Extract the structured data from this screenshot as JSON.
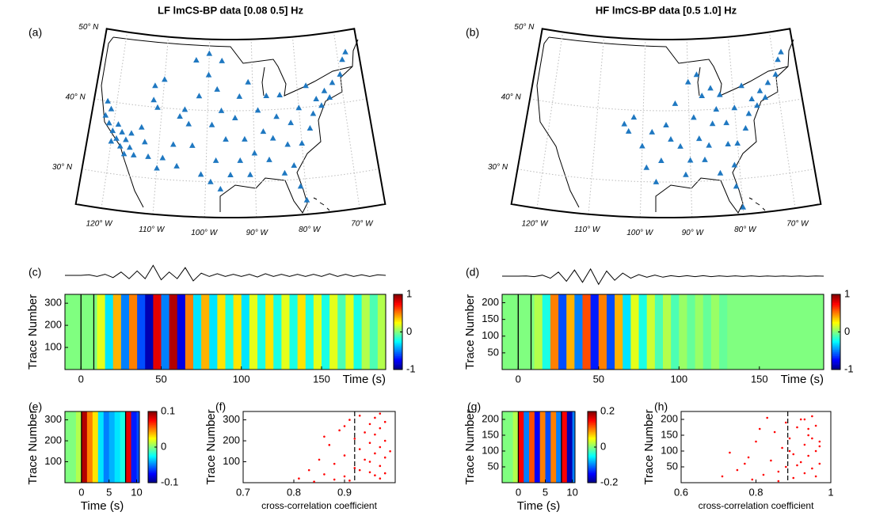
{
  "chart_data": [
    {
      "type": "map",
      "panel": "(a)",
      "title": "LF lmCS-BP data [0.08 0.5] Hz",
      "lonlim": [
        -125,
        -65
      ],
      "latlim": [
        25,
        50
      ],
      "grid": true,
      "color": "#1f78c1",
      "lat_ticks": [
        {
          "value": 50,
          "label": "50° N"
        },
        {
          "value": 40,
          "label": "40° N"
        },
        {
          "value": 30,
          "label": "30° N"
        }
      ],
      "lon_ticks": [
        {
          "value": -120,
          "label": "120° W"
        },
        {
          "value": -110,
          "label": "110° W"
        },
        {
          "value": -100,
          "label": "100° W"
        },
        {
          "value": -90,
          "label": "90° W"
        },
        {
          "value": -80,
          "label": "80° W"
        },
        {
          "value": -70,
          "label": "70° W"
        }
      ],
      "stations": {
        "lon": [
          -122,
          -121,
          -120,
          -119,
          -118,
          -117,
          -121,
          -119,
          -117,
          -116,
          -118,
          -115,
          -122,
          -120,
          -116,
          -112,
          -111,
          -112,
          -110,
          -106,
          -105,
          -104,
          -107,
          -109,
          -112,
          -110,
          -106,
          -103,
          -114,
          -113,
          -100,
          -98,
          -97,
          -99,
          -96,
          -98,
          -99,
          -101,
          -97,
          -95,
          -93,
          -92,
          -94,
          -93,
          -91,
          -89,
          -88,
          -90,
          -91,
          -87,
          -86,
          -85,
          -84,
          -83,
          -82,
          -81,
          -80,
          -84,
          -80,
          -78,
          -77,
          -76,
          -74,
          -72,
          -70,
          -69,
          -68,
          -73,
          -75,
          -78,
          -80,
          -82,
          -87,
          -102,
          -103,
          -100,
          -97
        ],
        "lat": [
          38,
          37,
          36,
          35,
          34,
          33,
          39,
          37,
          35,
          34,
          36,
          33,
          40,
          34.5,
          36,
          41,
          40,
          43,
          44,
          39,
          40,
          38,
          35,
          33,
          33,
          31.5,
          32,
          35,
          37,
          35,
          45,
          43,
          40,
          38,
          36,
          33,
          30,
          31,
          29,
          31,
          33,
          36,
          39,
          42,
          44,
          40,
          37,
          34,
          31,
          33,
          36,
          39,
          42,
          35,
          32,
          29,
          27,
          31,
          35,
          37,
          39,
          41,
          42,
          43,
          44,
          46,
          47,
          41,
          40,
          43,
          40,
          38,
          42,
          42,
          47,
          48,
          47
        ]
      }
    },
    {
      "type": "map",
      "panel": "(b)",
      "title": "HF lmCS-BP data [0.5 1.0] Hz",
      "lonlim": [
        -125,
        -65
      ],
      "latlim": [
        25,
        50
      ],
      "grid": true,
      "color": "#1f78c1",
      "lat_ticks": [
        {
          "value": 50,
          "label": "50° N"
        },
        {
          "value": 40,
          "label": "40° N"
        },
        {
          "value": 30,
          "label": "30° N"
        }
      ],
      "lon_ticks": [
        {
          "value": -120,
          "label": "120° W"
        },
        {
          "value": -110,
          "label": "110° W"
        },
        {
          "value": -100,
          "label": "100° W"
        },
        {
          "value": -90,
          "label": "90° W"
        },
        {
          "value": -80,
          "label": "80° W"
        },
        {
          "value": -70,
          "label": "70° W"
        }
      ],
      "stations": {
        "lon": [
          -104,
          -103,
          -102,
          -100,
          -99,
          -97,
          -96,
          -94,
          -92,
          -90,
          -91,
          -88,
          -87,
          -86,
          -85,
          -84,
          -83,
          -85,
          -82,
          -81,
          -81,
          -80,
          -84,
          -80,
          -78,
          -77,
          -76,
          -74,
          -72,
          -70,
          -69,
          -68,
          -73,
          -75,
          -78,
          -80,
          -82,
          -87,
          -89,
          -93,
          -95,
          -98,
          -90,
          -88
        ],
        "lat": [
          38,
          37,
          39,
          35,
          32,
          30,
          33,
          36,
          35,
          33,
          31,
          36,
          33,
          35,
          38,
          40,
          42,
          43,
          35,
          32,
          29,
          26,
          31,
          35,
          37,
          39,
          41,
          42,
          43,
          44,
          46,
          47,
          41,
          40,
          43,
          40,
          38,
          42,
          39,
          41,
          38,
          37,
          44,
          45
        ]
      }
    },
    {
      "type": "heatmap",
      "panel": "(c)",
      "x_label": "Time (s)",
      "y_label": "Trace Number",
      "xlim": [
        -10,
        190
      ],
      "xticks": [
        0,
        50,
        100,
        150
      ],
      "ylim": [
        0,
        340
      ],
      "yticks": [
        100,
        200,
        300
      ],
      "clim": [
        -1,
        1
      ],
      "cticks": [
        -1,
        0,
        1
      ],
      "markers": [
        0,
        8
      ],
      "x_edges": [
        -10,
        -5,
        0,
        5,
        10,
        15,
        20,
        25,
        30,
        35,
        40,
        45,
        50,
        55,
        60,
        65,
        70,
        75,
        80,
        85,
        90,
        95,
        100,
        105,
        110,
        115,
        120,
        125,
        130,
        135,
        140,
        145,
        150,
        155,
        160,
        165,
        170,
        175,
        180,
        185,
        190
      ],
      "values": [
        0,
        0,
        0,
        0,
        0.2,
        -0.3,
        0.4,
        -0.5,
        0.5,
        -0.6,
        -0.9,
        0.8,
        -0.5,
        0.9,
        -0.8,
        0.5,
        -0.3,
        0.4,
        -0.3,
        0.3,
        -0.2,
        0.3,
        -0.3,
        0.2,
        -0.2,
        0.3,
        -0.2,
        0.2,
        -0.2,
        0.3,
        -0.2,
        0.2,
        -0.2,
        0.2,
        -0.1,
        0.2,
        -0.2,
        0.1,
        -0.1,
        0.1
      ],
      "trace": [
        0,
        0,
        0,
        0.05,
        -0.1,
        0.1,
        -0.2,
        0.3,
        -0.3,
        0.4,
        -0.3,
        0.9,
        -0.4,
        0.3,
        -0.3,
        0.7,
        -0.5,
        0.2,
        -0.1,
        0.15,
        -0.1,
        0.1,
        -0.1,
        0.1,
        -0.15,
        0.15,
        -0.1,
        0.1,
        -0.1,
        0.1,
        -0.1,
        0.1,
        -0.1,
        0.15,
        -0.1,
        0.1,
        -0.1,
        0.05,
        -0.1,
        0.05,
        0
      ]
    },
    {
      "type": "heatmap",
      "panel": "(d)",
      "x_label": "Time (s)",
      "y_label": "Trace Number",
      "xlim": [
        -10,
        190
      ],
      "xticks": [
        0,
        50,
        100,
        150
      ],
      "ylim": [
        0,
        225
      ],
      "yticks": [
        50,
        100,
        150,
        200
      ],
      "clim": [
        -1,
        1
      ],
      "cticks": [
        -1,
        0,
        1
      ],
      "markers": [
        0,
        8
      ],
      "x_edges": [
        -10,
        -5,
        0,
        5,
        10,
        15,
        20,
        25,
        30,
        35,
        40,
        45,
        50,
        55,
        60,
        65,
        70,
        75,
        80,
        85,
        90,
        95,
        100,
        105,
        110,
        115,
        120,
        125,
        130,
        135,
        140,
        145,
        150,
        155,
        160,
        165,
        170,
        175,
        180,
        185,
        190
      ],
      "values": [
        0,
        0,
        0,
        0,
        0.1,
        -0.2,
        0.5,
        -0.6,
        0.4,
        -0.5,
        0.6,
        -0.7,
        0.5,
        -0.6,
        0.4,
        -0.3,
        0.2,
        -0.2,
        0.15,
        -0.1,
        0.1,
        -0.1,
        0.05,
        -0.05,
        0.05,
        -0.05,
        0.05,
        -0.05,
        0,
        0,
        0,
        0,
        0,
        0,
        0,
        0,
        0,
        0,
        0,
        0
      ],
      "trace": [
        0,
        0,
        0,
        0.02,
        -0.05,
        0.1,
        -0.2,
        0.4,
        -0.5,
        0.6,
        -0.6,
        0.7,
        -0.8,
        0.5,
        -0.4,
        0.3,
        -0.2,
        0.15,
        -0.1,
        0.1,
        -0.1,
        0.05,
        -0.05,
        0.05,
        -0.05,
        0.05,
        -0.05,
        0.03,
        -0.03,
        0.03,
        -0.03,
        0.03,
        -0.03,
        0.02,
        -0.02,
        0.02,
        -0.02,
        0.02,
        -0.02,
        0.02,
        0
      ]
    },
    {
      "type": "heatmap",
      "panel": "(e)",
      "x_label": "Time (s)",
      "y_label": "Trace Number",
      "xlim": [
        -3,
        10.5
      ],
      "xticks": [
        0,
        5,
        10
      ],
      "ylim": [
        0,
        340
      ],
      "yticks": [
        100,
        200,
        300
      ],
      "clim": [
        -0.1,
        0.1
      ],
      "cticks": [
        -0.1,
        0,
        0.1
      ],
      "markers": [
        0,
        8
      ],
      "x_edges": [
        -3,
        -2,
        -1,
        0,
        1,
        2,
        3,
        4,
        5,
        6,
        7,
        8,
        9,
        10,
        10.5
      ],
      "values": [
        0,
        0,
        0.01,
        0.09,
        0.05,
        0.03,
        -0.03,
        -0.05,
        -0.04,
        -0.03,
        -0.02,
        0.08,
        -0.07,
        -0.06
      ]
    },
    {
      "type": "scatter",
      "panel": "(f)",
      "x_label": "cross-correlation coefficient",
      "y_label": "Trace Number",
      "xlim": [
        0.7,
        1.0
      ],
      "xticks": [
        0.7,
        0.8,
        0.9
      ],
      "ylim": [
        0,
        340
      ],
      "yticks": [
        100,
        200,
        300
      ],
      "color": "#ff0000",
      "reference": 0.92,
      "x": [
        0.81,
        0.83,
        0.85,
        0.86,
        0.87,
        0.88,
        0.89,
        0.9,
        0.9,
        0.91,
        0.92,
        0.92,
        0.93,
        0.93,
        0.94,
        0.94,
        0.95,
        0.95,
        0.95,
        0.96,
        0.96,
        0.96,
        0.97,
        0.97,
        0.97,
        0.97,
        0.98,
        0.98,
        0.98,
        0.99,
        0.84,
        0.88,
        0.91,
        0.93,
        0.95,
        0.96,
        0.97,
        0.98,
        0.86,
        0.9
      ],
      "y": [
        20,
        60,
        110,
        40,
        180,
        90,
        250,
        130,
        30,
        300,
        210,
        70,
        160,
        320,
        240,
        110,
        280,
        50,
        190,
        230,
        140,
        310,
        80,
        260,
        170,
        20,
        200,
        120,
        290,
        150,
        5,
        15,
        10,
        60,
        100,
        35,
        330,
        45,
        220,
        270
      ]
    },
    {
      "type": "heatmap",
      "panel": "(g)",
      "x_label": "Time (s)",
      "y_label": "Trace Number",
      "xlim": [
        -3,
        10.5
      ],
      "xticks": [
        0,
        5,
        10
      ],
      "ylim": [
        0,
        225
      ],
      "yticks": [
        50,
        100,
        150,
        200
      ],
      "clim": [
        -0.2,
        0.2
      ],
      "cticks": [
        -0.2,
        0,
        0.2
      ],
      "markers": [
        0,
        8
      ],
      "x_edges": [
        -3,
        -2,
        -1,
        0,
        1,
        2,
        3,
        4,
        5,
        6,
        7,
        8,
        9,
        10,
        10.5
      ],
      "values": [
        0,
        0,
        0.02,
        0.15,
        -0.1,
        0.12,
        -0.15,
        0.1,
        -0.12,
        0.1,
        -0.1,
        0.15,
        -0.18,
        -0.1
      ]
    },
    {
      "type": "scatter",
      "panel": "(h)",
      "x_label": "cross-correlation coefficient",
      "y_label": "Trace Number",
      "xlim": [
        0.6,
        1.0
      ],
      "xticks": [
        0.6,
        0.8,
        1
      ],
      "ylim": [
        0,
        225
      ],
      "yticks": [
        50,
        100,
        150,
        200
      ],
      "color": "#ff0000",
      "reference": 0.885,
      "x": [
        0.71,
        0.73,
        0.75,
        0.77,
        0.79,
        0.8,
        0.82,
        0.83,
        0.84,
        0.85,
        0.86,
        0.87,
        0.88,
        0.88,
        0.89,
        0.9,
        0.9,
        0.91,
        0.92,
        0.92,
        0.93,
        0.93,
        0.94,
        0.94,
        0.95,
        0.95,
        0.96,
        0.96,
        0.97,
        0.97,
        0.78,
        0.81,
        0.86,
        0.89,
        0.91,
        0.94,
        0.96,
        0.93,
        0.95,
        0.97
      ],
      "y": [
        20,
        95,
        40,
        60,
        10,
        130,
        25,
        205,
        70,
        160,
        35,
        110,
        50,
        190,
        140,
        90,
        15,
        175,
        200,
        65,
        120,
        30,
        150,
        85,
        210,
        45,
        100,
        180,
        130,
        60,
        80,
        170,
        5,
        100,
        55,
        170,
        20,
        200,
        140,
        115
      ]
    }
  ]
}
